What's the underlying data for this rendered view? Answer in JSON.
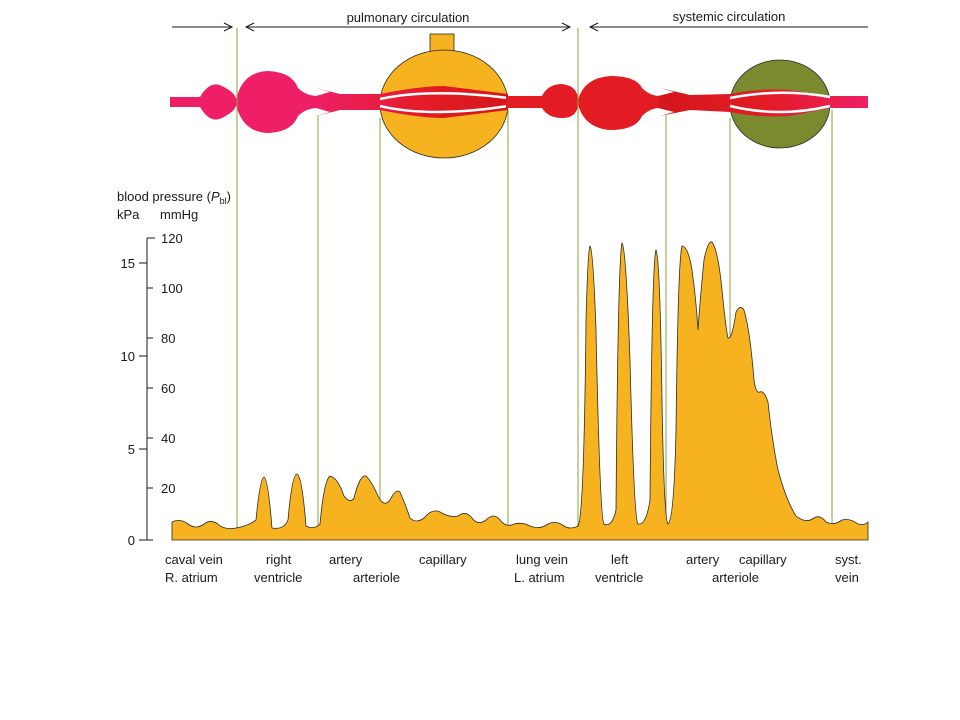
{
  "header": {
    "pulmonary": "pulmonary circulation",
    "systemic": "systemic circulation"
  },
  "axis": {
    "title_main": "blood pressure (",
    "title_var": "P",
    "title_sub": "bl",
    "title_close": ")",
    "unit_kpa": "kPa",
    "unit_mmhg": "mmHg",
    "kpa_ticks": [
      "15",
      "10",
      "5",
      "0"
    ],
    "mmhg_ticks": [
      "120",
      "100",
      "80",
      "60",
      "40",
      "20"
    ]
  },
  "segments": {
    "caval_vein": "caval vein",
    "r_atrium": "R. atrium",
    "right": "right",
    "ventricle_r": "ventricle",
    "artery_p": "artery",
    "arteriole_p": "arteriole",
    "capillary_p": "capillary",
    "lung_vein": "lung vein",
    "l_atrium": "L. atrium",
    "left": "left",
    "ventricle_l": "ventricle",
    "artery_s": "artery",
    "arteriole_s": "arteriole",
    "capillary_s": "capillary",
    "syst": "syst.",
    "vein": "vein"
  },
  "colors": {
    "pressure_fill": "#f7b21f",
    "venous": "#ee1f66",
    "arterial": "#e31b23",
    "lung": "#f7b21f",
    "body": "#7a8a2e",
    "divider": "#8aa33a"
  }
}
